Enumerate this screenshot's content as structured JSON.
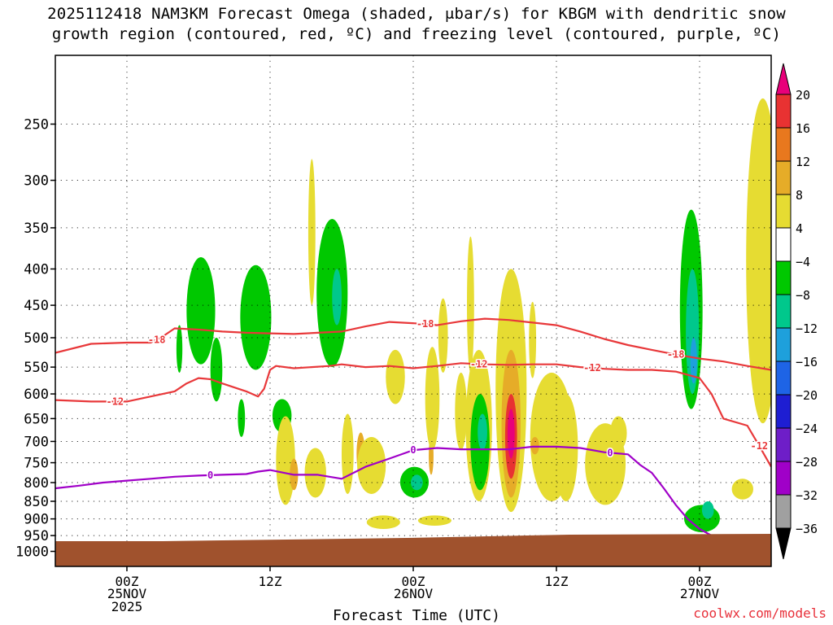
{
  "title_line1": "2025112418 NAM3KM Forecast Omega (shaded, μbar/s) for KBGM with dendritic snow",
  "title_line2": "growth region (contoured, red, ºC) and freezing level (contoured, purple, ºC)",
  "credit": "coolwx.com/models",
  "chart_data": {
    "type": "heatmap",
    "title": "2025112418 NAM3KM Forecast Omega (shaded, μbar/s) for KBGM with dendritic snow growth region (contoured, red, ºC) and freezing level (contoured, purple, ºC)",
    "xlabel": "Forecast Time (UTC)",
    "ylabel": "",
    "x_range_hours": [
      -6,
      54
    ],
    "y_range_hpa": [
      1050,
      200
    ],
    "y_scale": "log",
    "x_ticks": [
      {
        "hour": 0,
        "label": "00Z",
        "sub1": "25NOV",
        "sub2": "2025"
      },
      {
        "hour": 12,
        "label": "12Z",
        "sub1": "",
        "sub2": ""
      },
      {
        "hour": 24,
        "label": "00Z",
        "sub1": "26NOV",
        "sub2": ""
      },
      {
        "hour": 36,
        "label": "12Z",
        "sub1": "",
        "sub2": ""
      },
      {
        "hour": 48,
        "label": "00Z",
        "sub1": "27NOV",
        "sub2": ""
      }
    ],
    "y_ticks": [
      250,
      300,
      350,
      400,
      450,
      500,
      550,
      600,
      650,
      700,
      750,
      800,
      850,
      900,
      950,
      1000
    ],
    "grid": true,
    "colorbar": {
      "labels": [
        "20",
        "16",
        "12",
        "8",
        "4",
        "−4",
        "−8",
        "−12",
        "−16",
        "−20",
        "−24",
        "−28",
        "−32",
        "−36"
      ],
      "colors": [
        "#e8007a",
        "#e83232",
        "#e8781e",
        "#e6ac28",
        "#e6dc32",
        "#ffffff",
        "#00c800",
        "#00c88c",
        "#1ea0dc",
        "#1e64e6",
        "#1e1ed2",
        "#6e1ec8",
        "#a000c8",
        "#a0a0a0",
        "#000000"
      ]
    },
    "ground_color": "#a0522d",
    "contours": [
      {
        "name": "-18",
        "color": "#e8383a",
        "label_at_hours": [
          2.5,
          25,
          46
        ]
      },
      {
        "name": "-12",
        "color": "#e8383a",
        "label_at_hours": [
          -1,
          29.5,
          39,
          53
        ]
      },
      {
        "name": "0",
        "color": "#a000c8",
        "label_at_hours": [
          7,
          24,
          40.5
        ]
      }
    ],
    "series": [
      {
        "name": "-18",
        "x": [
          -6,
          -3,
          0,
          2,
          3,
          4,
          6,
          8,
          10,
          14,
          18,
          20,
          22,
          25,
          26,
          28,
          30,
          32,
          34,
          36,
          38,
          40,
          42,
          44,
          46,
          48,
          50,
          52,
          54
        ],
        "y": [
          525,
          510,
          508,
          508,
          498,
          485,
          487,
          490,
          492,
          494,
          490,
          482,
          475,
          478,
          480,
          474,
          470,
          472,
          476,
          480,
          490,
          502,
          512,
          520,
          528,
          535,
          540,
          548,
          555
        ]
      },
      {
        "name": "-12",
        "x": [
          -6,
          -3,
          0,
          2,
          4,
          5,
          6,
          7,
          8,
          10,
          11,
          11.5,
          12,
          12.5,
          14,
          17,
          18,
          20,
          22,
          24,
          26,
          28,
          30,
          32,
          34,
          36,
          38,
          40,
          42,
          44,
          46,
          48,
          49,
          50,
          52,
          53,
          54
        ],
        "y": [
          612,
          615,
          615,
          605,
          595,
          580,
          570,
          572,
          580,
          595,
          605,
          590,
          555,
          548,
          552,
          548,
          545,
          550,
          548,
          552,
          548,
          543,
          545,
          546,
          545,
          545,
          550,
          553,
          555,
          555,
          558,
          570,
          600,
          650,
          665,
          710,
          760
        ]
      },
      {
        "name": "0",
        "x": [
          -6,
          -4,
          -2,
          0,
          2,
          4,
          6,
          8,
          10,
          11,
          12,
          14,
          16,
          18,
          20,
          22,
          24,
          26,
          28,
          30,
          32,
          34,
          36,
          38,
          40,
          42,
          43,
          44,
          45,
          46,
          47,
          48,
          49,
          50,
          51
        ],
        "y": [
          815,
          808,
          800,
          795,
          790,
          785,
          782,
          780,
          778,
          772,
          768,
          780,
          780,
          790,
          760,
          740,
          720,
          715,
          718,
          718,
          718,
          712,
          712,
          715,
          725,
          730,
          755,
          775,
          815,
          860,
          900,
          930,
          950,
          955,
          960
        ]
      }
    ]
  }
}
